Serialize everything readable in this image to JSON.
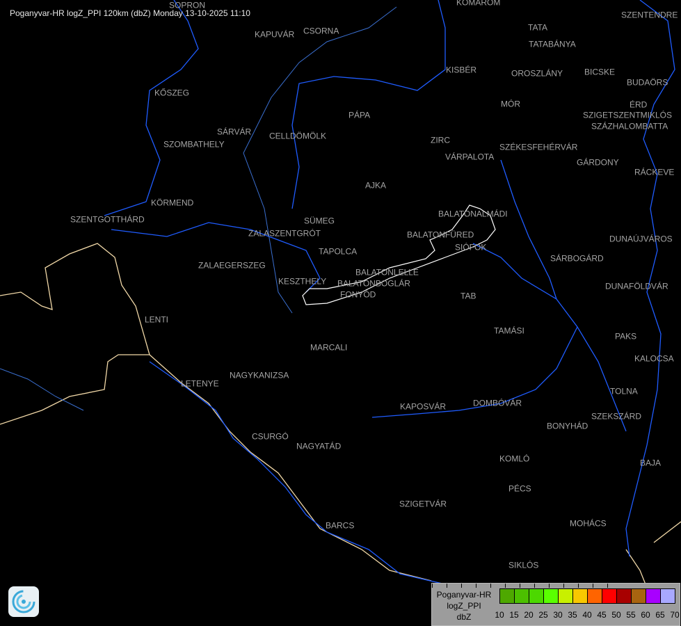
{
  "title": "Poganyvar-HR logZ_PPI 120km (dbZ) Monday 13-10-2025 11:10",
  "colors": {
    "background": "#000000",
    "river": "#1f5cff",
    "border": "#f2d9a8",
    "lake": "#ffffff",
    "label": "#a4a4a4"
  },
  "cities": [
    {
      "name": "SOPRON"
    },
    {
      "name": "KOMÁROM"
    },
    {
      "name": "SZENTENDRE"
    },
    {
      "name": "KAPUVÁR"
    },
    {
      "name": "CSORNA"
    },
    {
      "name": "TATA"
    },
    {
      "name": "TATABÁNYA"
    },
    {
      "name": "KISBÉR"
    },
    {
      "name": "OROSZLÁNY"
    },
    {
      "name": "BICSKE"
    },
    {
      "name": "BUDAÖRS"
    },
    {
      "name": "KŐSZEG"
    },
    {
      "name": "MÓR"
    },
    {
      "name": "ÉRD"
    },
    {
      "name": "SZIGETSZENTMIKLÓS"
    },
    {
      "name": "SZÁZHALOMBATTA"
    },
    {
      "name": "PÁPA"
    },
    {
      "name": "SÁRVÁR"
    },
    {
      "name": "CELLDÖMÖLK"
    },
    {
      "name": "SZOMBATHELY"
    },
    {
      "name": "ZIRC"
    },
    {
      "name": "VÁRPALOTA"
    },
    {
      "name": "SZÉKESFEHÉRVÁR"
    },
    {
      "name": "GÁRDONY"
    },
    {
      "name": "RÁCKEVE"
    },
    {
      "name": "AJKA"
    },
    {
      "name": "KÖRMEND"
    },
    {
      "name": "BALATONALMÁDI"
    },
    {
      "name": "SZENTGOTTHÁRD"
    },
    {
      "name": "SÜMEG"
    },
    {
      "name": "ZALASZENTGRÓT"
    },
    {
      "name": "BALATONFÜRED"
    },
    {
      "name": "DUNAÚJVÁROS"
    },
    {
      "name": "SIÓFOK"
    },
    {
      "name": "TAPOLCA"
    },
    {
      "name": "SÁRBOGÁRD"
    },
    {
      "name": "ZALAEGERSZEG"
    },
    {
      "name": "BALATONLELLE"
    },
    {
      "name": "BALATONBOGLÁR"
    },
    {
      "name": "KESZTHELY"
    },
    {
      "name": "DUNAFÖLDVÁR"
    },
    {
      "name": "FONYÓD"
    },
    {
      "name": "TAB"
    },
    {
      "name": "LENTI"
    },
    {
      "name": "TAMÁSI"
    },
    {
      "name": "PAKS"
    },
    {
      "name": "MARCALI"
    },
    {
      "name": "KALOCSA"
    },
    {
      "name": "NAGYKANIZSA"
    },
    {
      "name": "LETENYE"
    },
    {
      "name": "TOLNA"
    },
    {
      "name": "KAPOSVÁR"
    },
    {
      "name": "DOMBÓVÁR"
    },
    {
      "name": "SZEKSZÁRD"
    },
    {
      "name": "BONYHÁD"
    },
    {
      "name": "CSURGÓ"
    },
    {
      "name": "NAGYATÁD"
    },
    {
      "name": "KOMLÓ"
    },
    {
      "name": "BAJA"
    },
    {
      "name": "PÉCS"
    },
    {
      "name": "SZIGETVÁR"
    },
    {
      "name": "BARCS"
    },
    {
      "name": "MOHÁCS"
    },
    {
      "name": "SIKLÓS"
    }
  ],
  "legend": {
    "line1": "Poganyvar-HR",
    "line2": "logZ_PPI",
    "line3": "dbZ",
    "colors": [
      "#4ea800",
      "#4cc000",
      "#4cd800",
      "#5aff00",
      "#c8f000",
      "#f8c800",
      "#ff6400",
      "#ff0000",
      "#a80000",
      "#a86410",
      "#a800ff",
      "#a8a8ff"
    ],
    "ticks": [
      "10",
      "15",
      "20",
      "25",
      "30",
      "35",
      "40",
      "45",
      "50",
      "55",
      "60",
      "65",
      "70"
    ]
  }
}
